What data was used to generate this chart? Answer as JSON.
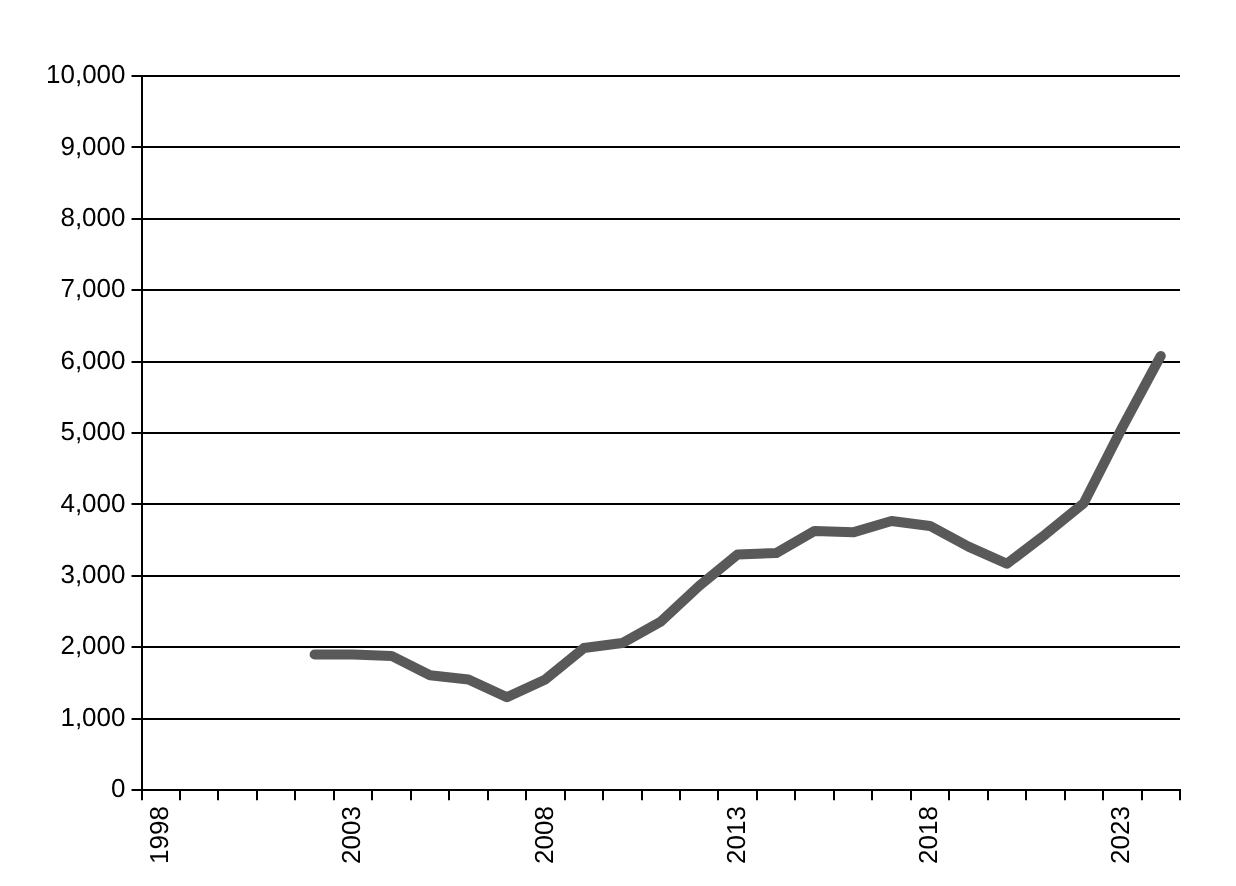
{
  "chart_data": {
    "type": "line",
    "categories": [
      "1998",
      null,
      null,
      null,
      null,
      "2003",
      null,
      null,
      null,
      null,
      "2008",
      null,
      null,
      null,
      null,
      "2013",
      null,
      null,
      null,
      null,
      "2018",
      null,
      null,
      null,
      null,
      "2023",
      null
    ],
    "series": [
      {
        "color": "#595959",
        "values": [
          null,
          null,
          null,
          null,
          1900,
          1900,
          1880,
          1610,
          1550,
          1300,
          1550,
          1990,
          2060,
          2360,
          2860,
          3300,
          3320,
          3630,
          3610,
          3770,
          3700,
          3410,
          3170,
          3580,
          4020,
          5080,
          6080
        ]
      }
    ],
    "ylim": [
      0,
      10000
    ],
    "yticks": [
      {
        "value": 0,
        "label": "0"
      },
      {
        "value": 1000,
        "label": "1,000"
      },
      {
        "value": 2000,
        "label": "2,000"
      },
      {
        "value": 3000,
        "label": "3,000"
      },
      {
        "value": 4000,
        "label": "4,000"
      },
      {
        "value": 5000,
        "label": "5,000"
      },
      {
        "value": 6000,
        "label": "6,000"
      },
      {
        "value": 7000,
        "label": "7,000"
      },
      {
        "value": 8000,
        "label": "8,000"
      },
      {
        "value": 9000,
        "label": "9,000"
      },
      {
        "value": 10000,
        "label": "10,000"
      }
    ],
    "grid": "y",
    "legend": false,
    "marker": "none",
    "line_style": "solid"
  }
}
